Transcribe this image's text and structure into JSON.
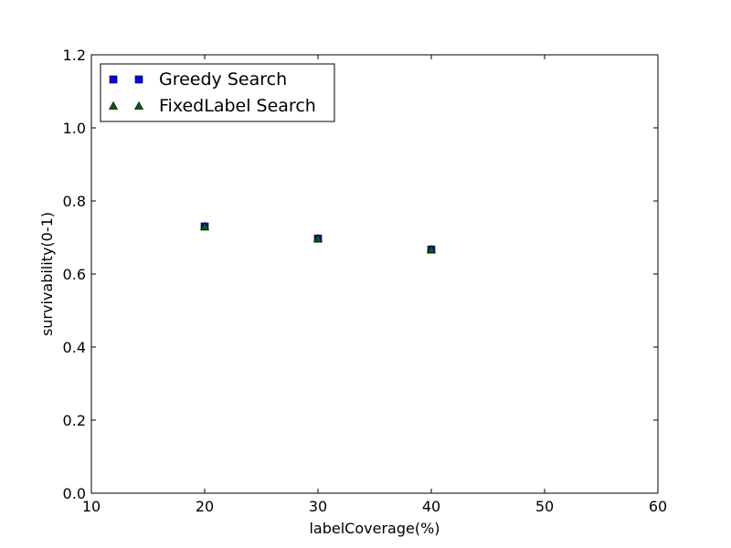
{
  "chart_data": {
    "type": "scatter",
    "title": "",
    "xlabel": "labelCoverage(%)",
    "ylabel": "survivability(0-1)",
    "xlim": [
      10,
      60
    ],
    "ylim": [
      0.0,
      1.2
    ],
    "xticks": [
      "10",
      "20",
      "30",
      "40",
      "50",
      "60"
    ],
    "yticks": [
      "0.0",
      "0.2",
      "0.4",
      "0.6",
      "0.8",
      "1.0",
      "1.2"
    ],
    "grid": false,
    "legend_position": "top-left",
    "series": [
      {
        "name": "Greedy Search",
        "marker": "square",
        "color": "#0000ff",
        "x": [
          20,
          30,
          40
        ],
        "y": [
          0.73,
          0.697,
          0.667
        ]
      },
      {
        "name": "FixedLabel Search",
        "marker": "triangle",
        "color": "#006400",
        "x": [
          20,
          30,
          40
        ],
        "y": [
          0.73,
          0.697,
          0.667
        ]
      }
    ]
  }
}
